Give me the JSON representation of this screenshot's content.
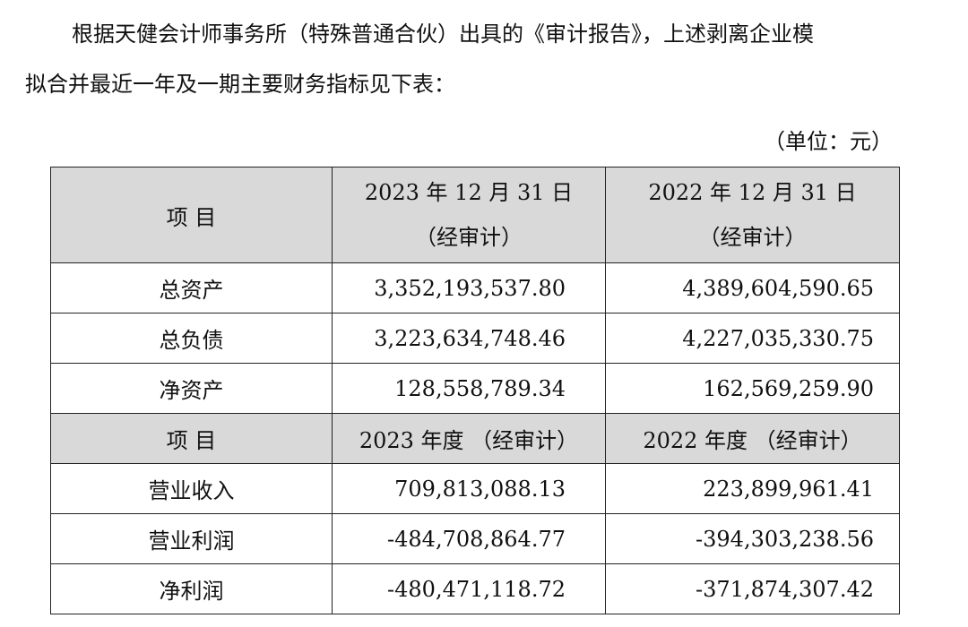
{
  "intro": {
    "line1": "根据天健会计师事务所（特殊普通合伙）出具的《审计报告》，上述剥离企业模",
    "line2": "拟合并最近一年及一期主要财务指标见下表："
  },
  "unit": "（单位：元）",
  "table": {
    "balance_header": {
      "item": "项  目",
      "col1_date": "2023 年 12 月 31 日",
      "col1_note": "（经审计）",
      "col2_date": "2022 年 12 月 31 日",
      "col2_note": "（经审计）"
    },
    "balance_rows": [
      {
        "label": "总资产",
        "v2023": "3,352,193,537.80",
        "v2022": "4,389,604,590.65"
      },
      {
        "label": "总负债",
        "v2023": "3,223,634,748.46",
        "v2022": "4,227,035,330.75"
      },
      {
        "label": "净资产",
        "v2023": "128,558,789.34",
        "v2022": "162,569,259.90"
      }
    ],
    "income_header": {
      "item": "项  目",
      "col1": "2023 年度 （经审计）",
      "col2": "2022 年度 （经审计）"
    },
    "income_rows": [
      {
        "label": "营业收入",
        "v2023": "709,813,088.13",
        "v2022": "223,899,961.41"
      },
      {
        "label": "营业利润",
        "v2023": "-484,708,864.77",
        "v2022": "-394,303,238.56"
      },
      {
        "label": "净利润",
        "v2023": "-480,471,118.72",
        "v2022": "-371,874,307.42"
      }
    ]
  }
}
